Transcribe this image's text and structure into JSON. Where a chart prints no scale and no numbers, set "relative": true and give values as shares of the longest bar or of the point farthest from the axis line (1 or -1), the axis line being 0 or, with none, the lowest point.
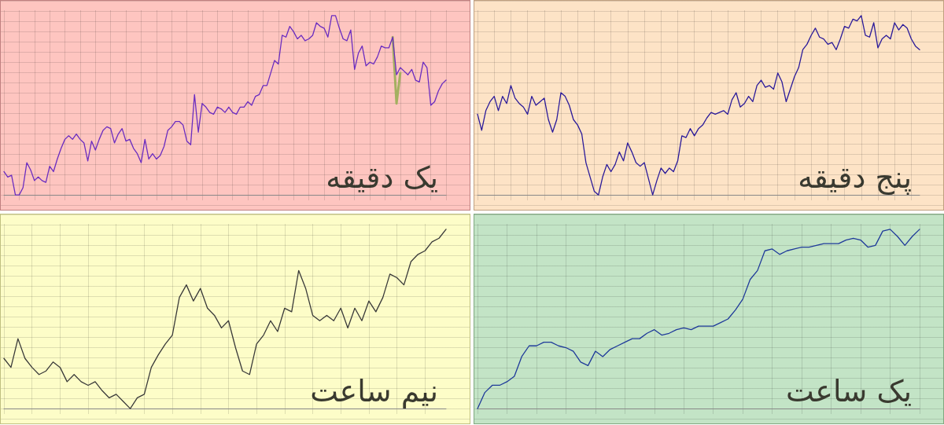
{
  "chart_data": [
    {
      "type": "line",
      "relative": true,
      "grid": true,
      "tick_labels": false,
      "annotations": [
        "یک دقیقه"
      ],
      "categories": [
        null,
        null,
        null,
        null,
        null,
        null,
        null,
        null,
        null,
        null,
        null,
        null,
        null,
        null,
        null,
        null,
        null,
        null,
        null,
        null,
        null,
        null,
        null,
        null,
        null,
        null,
        null,
        null,
        null,
        null,
        null,
        null,
        null,
        null,
        null,
        null,
        null,
        null,
        null,
        null,
        null,
        null,
        null,
        null,
        null,
        null,
        null,
        null,
        null,
        null,
        null,
        null,
        null,
        null,
        null,
        null,
        null,
        null,
        null,
        null,
        null,
        null,
        null,
        null,
        null,
        null,
        null,
        null,
        null,
        null,
        null,
        null,
        null,
        null,
        null,
        null,
        null,
        null,
        null,
        null,
        null,
        null,
        null,
        null,
        null,
        null,
        null,
        null,
        null,
        null,
        null,
        null,
        null,
        null,
        null,
        null,
        null,
        null,
        null,
        null,
        null,
        null,
        null,
        null,
        null,
        null,
        null,
        null,
        null,
        null,
        null,
        null,
        null,
        null,
        null,
        null,
        null
      ],
      "series": [
        {
          "color": "#a4b060",
          "values": [
            null,
            null,
            null,
            null,
            null,
            null,
            null,
            null,
            null,
            null,
            null,
            null,
            null,
            null,
            null,
            null,
            null,
            null,
            null,
            null,
            null,
            null,
            null,
            null,
            null,
            null,
            null,
            null,
            null,
            null,
            null,
            null,
            null,
            null,
            null,
            null,
            null,
            null,
            null,
            null,
            null,
            null,
            null,
            null,
            null,
            null,
            null,
            null,
            null,
            null,
            null,
            null,
            null,
            null,
            null,
            null,
            null,
            null,
            null,
            null,
            null,
            null,
            null,
            null,
            null,
            null,
            null,
            null,
            null,
            null,
            null,
            null,
            null,
            null,
            null,
            null,
            null,
            null,
            null,
            null,
            null,
            null,
            null,
            null,
            null,
            null,
            null,
            null,
            null,
            null,
            null,
            null,
            null,
            null,
            null,
            null,
            null,
            null,
            null,
            null,
            null,
            null,
            0.88,
            0.51,
            0.68,
            null,
            null,
            null,
            null,
            null,
            null,
            null,
            null,
            null,
            null,
            null,
            null
          ]
        },
        {
          "color": "#6a2cc0",
          "values": [
            0.13,
            0.1,
            0.11,
            0.0,
            0.0,
            0.04,
            0.18,
            0.14,
            0.08,
            0.1,
            0.08,
            0.07,
            0.16,
            0.13,
            0.2,
            0.26,
            0.31,
            0.33,
            0.31,
            0.34,
            0.31,
            0.29,
            0.19,
            0.3,
            0.25,
            0.31,
            0.36,
            0.38,
            0.37,
            0.29,
            0.34,
            0.37,
            0.3,
            0.31,
            0.26,
            0.23,
            0.18,
            0.31,
            0.2,
            0.23,
            0.2,
            0.22,
            0.27,
            0.36,
            0.38,
            0.41,
            0.41,
            0.39,
            0.3,
            0.28,
            0.56,
            0.35,
            0.51,
            0.49,
            0.46,
            0.45,
            0.49,
            0.48,
            0.46,
            0.49,
            0.46,
            0.45,
            0.49,
            0.49,
            0.52,
            0.5,
            0.55,
            0.56,
            0.61,
            0.61,
            0.68,
            0.75,
            0.73,
            0.89,
            0.88,
            0.94,
            0.91,
            0.87,
            0.89,
            0.86,
            0.87,
            0.89,
            0.96,
            0.94,
            0.93,
            0.88,
            1.0,
            1.0,
            0.93,
            0.87,
            0.86,
            0.92,
            0.7,
            0.79,
            0.83,
            0.72,
            0.74,
            0.73,
            0.77,
            0.83,
            0.82,
            0.82,
            0.88,
            0.67,
            0.71,
            0.69,
            0.67,
            0.7,
            0.64,
            0.63,
            0.74,
            0.71,
            0.5,
            0.52,
            0.58,
            0.62,
            0.64
          ]
        }
      ]
    },
    {
      "type": "line",
      "relative": true,
      "grid": true,
      "tick_labels": false,
      "annotations": [
        "پنج دقیقه"
      ],
      "categories": [
        null,
        null,
        null,
        null,
        null,
        null,
        null,
        null,
        null,
        null,
        null,
        null,
        null,
        null,
        null,
        null,
        null,
        null,
        null,
        null,
        null,
        null,
        null,
        null,
        null,
        null,
        null,
        null,
        null,
        null,
        null,
        null,
        null,
        null,
        null,
        null,
        null,
        null,
        null,
        null,
        null,
        null,
        null,
        null,
        null,
        null,
        null,
        null,
        null,
        null,
        null,
        null,
        null,
        null,
        null,
        null,
        null,
        null,
        null,
        null,
        null,
        null,
        null,
        null,
        null,
        null,
        null,
        null,
        null,
        null,
        null,
        null,
        null,
        null,
        null,
        null,
        null,
        null,
        null,
        null,
        null,
        null,
        null,
        null,
        null,
        null,
        null,
        null,
        null,
        null,
        null,
        null,
        null,
        null,
        null,
        null,
        null,
        null,
        null,
        null,
        null,
        null,
        null,
        null,
        null,
        null,
        null
      ],
      "series": [
        {
          "color": "#2a1a9a",
          "values": [
            0.45,
            0.36,
            0.47,
            0.52,
            0.55,
            0.47,
            0.55,
            0.51,
            0.61,
            0.54,
            0.51,
            0.49,
            0.45,
            0.55,
            0.5,
            0.52,
            0.54,
            0.42,
            0.35,
            0.42,
            0.57,
            0.55,
            0.5,
            0.42,
            0.39,
            0.34,
            0.18,
            0.1,
            0.02,
            0.0,
            0.1,
            0.17,
            0.13,
            0.17,
            0.24,
            0.19,
            0.29,
            0.24,
            0.18,
            0.16,
            0.18,
            0.09,
            0.0,
            0.08,
            0.15,
            0.12,
            0.15,
            0.13,
            0.19,
            0.33,
            0.32,
            0.37,
            0.33,
            0.37,
            0.39,
            0.43,
            0.46,
            0.45,
            0.46,
            0.47,
            0.45,
            0.53,
            0.57,
            0.49,
            0.51,
            0.55,
            0.52,
            0.61,
            0.64,
            0.6,
            0.61,
            0.59,
            0.68,
            0.63,
            0.52,
            0.59,
            0.66,
            0.71,
            0.81,
            0.84,
            0.89,
            0.93,
            0.88,
            0.87,
            0.84,
            0.85,
            0.81,
            0.87,
            0.94,
            0.93,
            0.98,
            0.97,
            1.0,
            0.89,
            0.88,
            0.96,
            0.82,
            0.87,
            0.89,
            0.87,
            0.96,
            0.92,
            0.95,
            0.93,
            0.87,
            0.83,
            0.81
          ]
        }
      ]
    },
    {
      "type": "line",
      "relative": true,
      "grid": true,
      "tick_labels": false,
      "annotations": [
        "نیم ساعت"
      ],
      "categories": [
        null,
        null,
        null,
        null,
        null,
        null,
        null,
        null,
        null,
        null,
        null,
        null,
        null,
        null,
        null,
        null,
        null,
        null,
        null,
        null,
        null,
        null,
        null,
        null,
        null,
        null,
        null,
        null,
        null,
        null,
        null,
        null,
        null,
        null,
        null,
        null,
        null,
        null,
        null,
        null,
        null,
        null,
        null,
        null,
        null,
        null,
        null,
        null,
        null,
        null,
        null,
        null,
        null,
        null,
        null,
        null,
        null,
        null,
        null,
        null,
        null,
        null,
        null,
        null
      ],
      "series": [
        {
          "color": "#3a3a3a",
          "values": [
            0.28,
            0.23,
            0.39,
            0.28,
            0.23,
            0.19,
            0.21,
            0.26,
            0.23,
            0.15,
            0.19,
            0.15,
            0.13,
            0.15,
            0.1,
            0.06,
            0.08,
            0.04,
            0.0,
            0.06,
            0.08,
            0.23,
            0.3,
            0.36,
            0.41,
            0.62,
            0.69,
            0.6,
            0.67,
            0.56,
            0.52,
            0.45,
            0.49,
            0.34,
            0.21,
            0.19,
            0.36,
            0.41,
            0.49,
            0.43,
            0.56,
            0.54,
            0.77,
            0.67,
            0.52,
            0.49,
            0.52,
            0.49,
            0.56,
            0.45,
            0.56,
            0.49,
            0.6,
            0.54,
            0.62,
            0.75,
            0.73,
            0.69,
            0.82,
            0.86,
            0.88,
            0.93,
            0.95,
            1.0
          ]
        }
      ]
    },
    {
      "type": "line",
      "relative": true,
      "grid": true,
      "tick_labels": false,
      "annotations": [
        "یک ساعت"
      ],
      "categories": [
        null,
        null,
        null,
        null,
        null,
        null,
        null,
        null,
        null,
        null,
        null,
        null,
        null,
        null,
        null,
        null,
        null,
        null,
        null,
        null,
        null,
        null,
        null,
        null,
        null,
        null,
        null,
        null,
        null,
        null,
        null,
        null,
        null,
        null,
        null,
        null,
        null,
        null,
        null,
        null,
        null,
        null,
        null,
        null,
        null,
        null,
        null,
        null,
        null,
        null,
        null,
        null,
        null,
        null,
        null,
        null,
        null,
        null,
        null,
        null,
        null
      ],
      "series": [
        {
          "color": "#1f3a9a",
          "values": [
            0.0,
            0.09,
            0.13,
            0.13,
            0.15,
            0.18,
            0.29,
            0.35,
            0.35,
            0.37,
            0.37,
            0.35,
            0.34,
            0.32,
            0.26,
            0.24,
            0.32,
            0.29,
            0.33,
            0.35,
            0.37,
            0.39,
            0.39,
            0.42,
            0.44,
            0.41,
            0.42,
            0.44,
            0.45,
            0.44,
            0.46,
            0.46,
            0.46,
            0.48,
            0.5,
            0.55,
            0.61,
            0.72,
            0.77,
            0.88,
            0.89,
            0.86,
            0.88,
            0.89,
            0.9,
            0.9,
            0.91,
            0.92,
            0.92,
            0.92,
            0.94,
            0.95,
            0.94,
            0.9,
            0.91,
            0.99,
            1.0,
            0.96,
            0.91,
            0.96,
            1.0
          ]
        }
      ]
    }
  ]
}
